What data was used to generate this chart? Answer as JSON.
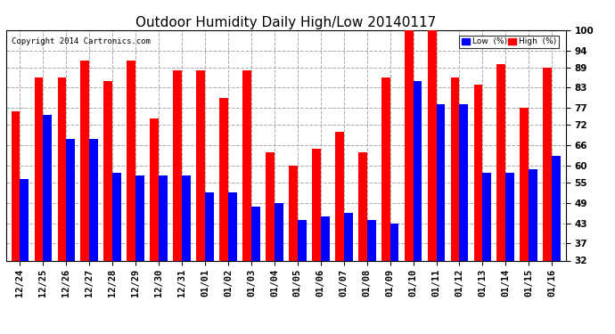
{
  "title": "Outdoor Humidity Daily High/Low 20140117",
  "copyright": "Copyright 2014 Cartronics.com",
  "dates": [
    "12/24",
    "12/25",
    "12/26",
    "12/27",
    "12/28",
    "12/29",
    "12/30",
    "12/31",
    "01/01",
    "01/02",
    "01/03",
    "01/04",
    "01/05",
    "01/06",
    "01/07",
    "01/08",
    "01/09",
    "01/10",
    "01/11",
    "01/12",
    "01/13",
    "01/14",
    "01/15",
    "01/16"
  ],
  "high": [
    76,
    86,
    86,
    91,
    85,
    91,
    74,
    88,
    88,
    80,
    88,
    64,
    60,
    65,
    70,
    64,
    86,
    101,
    101,
    86,
    84,
    90,
    77,
    89
  ],
  "low": [
    56,
    75,
    68,
    68,
    58,
    57,
    57,
    57,
    52,
    52,
    48,
    49,
    44,
    45,
    46,
    44,
    43,
    85,
    78,
    78,
    58,
    58,
    59,
    63
  ],
  "ylim_min": 32,
  "ylim_max": 100,
  "yticks": [
    32,
    37,
    43,
    49,
    55,
    60,
    66,
    72,
    77,
    83,
    89,
    94,
    100
  ],
  "bar_width": 0.38,
  "low_color": "#0000ff",
  "high_color": "#ff0000",
  "bg_color": "#ffffff",
  "grid_color": "#aaaaaa",
  "title_fontsize": 11,
  "tick_fontsize": 7.5,
  "legend_low_label": "Low  (%)",
  "legend_high_label": "High  (%)"
}
